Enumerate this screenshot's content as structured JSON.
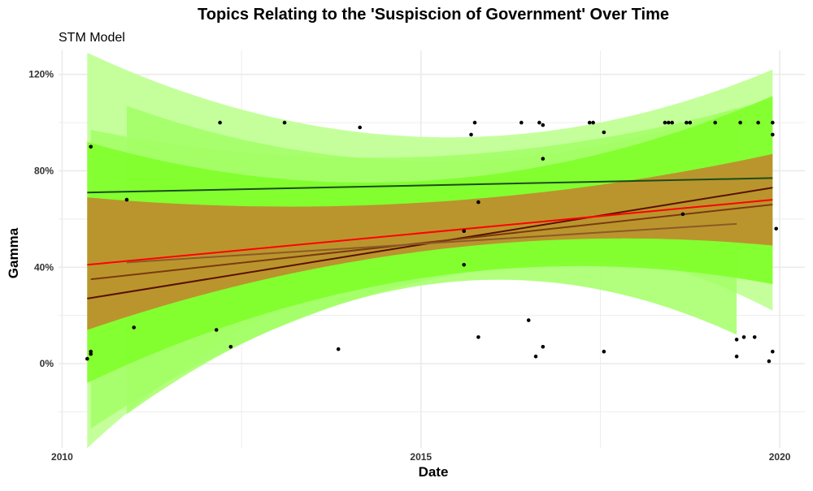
{
  "chart_data": {
    "type": "scatter",
    "title": "Topics Relating to the 'Suspiscion of Government' Over Time",
    "subtitle": "STM Model",
    "xlabel": "Date",
    "ylabel": "Gamma",
    "xlim": [
      2009.95,
      2020.35
    ],
    "ylim": [
      -0.35,
      1.3
    ],
    "x_ticks": [
      2010,
      2015,
      2020
    ],
    "x_tick_labels": [
      "2010",
      "2015",
      "2020"
    ],
    "y_ticks": [
      0,
      0.4,
      0.8,
      1.2
    ],
    "y_tick_labels": [
      "0%",
      "40%",
      "80%",
      "120%"
    ],
    "grid": true,
    "colors": {
      "band_light": "#c4ff9c",
      "band_mid": "#a3ff66",
      "band_dark": "#80ff2a",
      "band_orange": "#c08a2e",
      "band_orange_opacity": 0.9,
      "line_red": "#ff0000",
      "line_darkred": "#5a1000",
      "line_brown": "#7a3a10",
      "line_brown_light": "#8c5a28",
      "line_green": "#1a4d1a",
      "point": "#000000",
      "grid": "#ebebeb"
    },
    "trend_lines": [
      {
        "x": [
          2010.35,
          2019.9
        ],
        "y": [
          0.71,
          0.77
        ],
        "color": "line_green"
      },
      {
        "x": [
          2010.35,
          2019.9
        ],
        "y": [
          0.27,
          0.73
        ],
        "color": "line_darkred"
      },
      {
        "x": [
          2010.35,
          2019.9
        ],
        "y": [
          0.41,
          0.68
        ],
        "color": "line_red"
      },
      {
        "x": [
          2010.4,
          2019.9
        ],
        "y": [
          0.35,
          0.66
        ],
        "color": "line_brown"
      },
      {
        "x": [
          2010.9,
          2019.4
        ],
        "y": [
          0.42,
          0.58
        ],
        "color": "line_brown_light"
      }
    ],
    "bands": [
      {
        "x0": 2010.35,
        "x1": 2019.9,
        "upper": [
          1.29,
          0.94,
          1.22
        ],
        "lower": [
          -0.35,
          0.45,
          0.22
        ],
        "color": "band_light",
        "opacity": 1
      },
      {
        "x0": 2010.4,
        "x1": 2019.9,
        "upper": [
          0.97,
          0.86,
          1.1
        ],
        "lower": [
          -0.27,
          0.35,
          0.33
        ],
        "color": "band_mid",
        "opacity": 0.85
      },
      {
        "x0": 2010.9,
        "x1": 2019.4,
        "upper": [
          1.07,
          0.84,
          1.06
        ],
        "lower": [
          -0.21,
          0.33,
          0.12
        ],
        "color": "band_mid",
        "opacity": 0.85
      },
      {
        "x0": 2010.35,
        "x1": 2019.9,
        "upper": [
          0.92,
          0.76,
          1.11
        ],
        "lower": [
          -0.08,
          0.36,
          0.33
        ],
        "color": "band_dark",
        "opacity": 0.9
      },
      {
        "x0": 2010.35,
        "x1": 2019.9,
        "upper": [
          0.69,
          0.67,
          0.87
        ],
        "lower": [
          0.14,
          0.47,
          0.49
        ],
        "color": "band_orange",
        "opacity": 0.9
      }
    ],
    "points": [
      {
        "x": 2010.35,
        "y": 0.02
      },
      {
        "x": 2010.4,
        "y": 0.04
      },
      {
        "x": 2010.4,
        "y": 0.05
      },
      {
        "x": 2010.4,
        "y": 0.9
      },
      {
        "x": 2010.9,
        "y": 0.68
      },
      {
        "x": 2011.0,
        "y": 0.15
      },
      {
        "x": 2012.15,
        "y": 0.14
      },
      {
        "x": 2012.2,
        "y": 1.0
      },
      {
        "x": 2012.35,
        "y": 0.07
      },
      {
        "x": 2013.1,
        "y": 1.0
      },
      {
        "x": 2013.85,
        "y": 0.06
      },
      {
        "x": 2014.15,
        "y": 0.98
      },
      {
        "x": 2015.6,
        "y": 0.55
      },
      {
        "x": 2015.6,
        "y": 0.41
      },
      {
        "x": 2015.7,
        "y": 0.95
      },
      {
        "x": 2015.75,
        "y": 1.0
      },
      {
        "x": 2015.8,
        "y": 0.67
      },
      {
        "x": 2015.8,
        "y": 0.11
      },
      {
        "x": 2016.4,
        "y": 1.0
      },
      {
        "x": 2016.5,
        "y": 0.18
      },
      {
        "x": 2016.6,
        "y": 0.03
      },
      {
        "x": 2016.65,
        "y": 1.0
      },
      {
        "x": 2016.7,
        "y": 0.99
      },
      {
        "x": 2016.7,
        "y": 0.85
      },
      {
        "x": 2016.7,
        "y": 0.07
      },
      {
        "x": 2017.35,
        "y": 1.0
      },
      {
        "x": 2017.4,
        "y": 1.0
      },
      {
        "x": 2017.55,
        "y": 0.96
      },
      {
        "x": 2017.55,
        "y": 0.05
      },
      {
        "x": 2018.4,
        "y": 1.0
      },
      {
        "x": 2018.45,
        "y": 1.0
      },
      {
        "x": 2018.5,
        "y": 1.0
      },
      {
        "x": 2018.65,
        "y": 0.62
      },
      {
        "x": 2018.7,
        "y": 1.0
      },
      {
        "x": 2018.75,
        "y": 1.0
      },
      {
        "x": 2019.1,
        "y": 1.0
      },
      {
        "x": 2019.4,
        "y": 0.03
      },
      {
        "x": 2019.4,
        "y": 0.1
      },
      {
        "x": 2019.45,
        "y": 1.0
      },
      {
        "x": 2019.5,
        "y": 0.11
      },
      {
        "x": 2019.65,
        "y": 0.11
      },
      {
        "x": 2019.7,
        "y": 1.0
      },
      {
        "x": 2019.85,
        "y": 0.01
      },
      {
        "x": 2019.9,
        "y": 1.0
      },
      {
        "x": 2019.9,
        "y": 0.95
      },
      {
        "x": 2019.9,
        "y": 0.05
      },
      {
        "x": 2019.95,
        "y": 0.56
      }
    ]
  }
}
